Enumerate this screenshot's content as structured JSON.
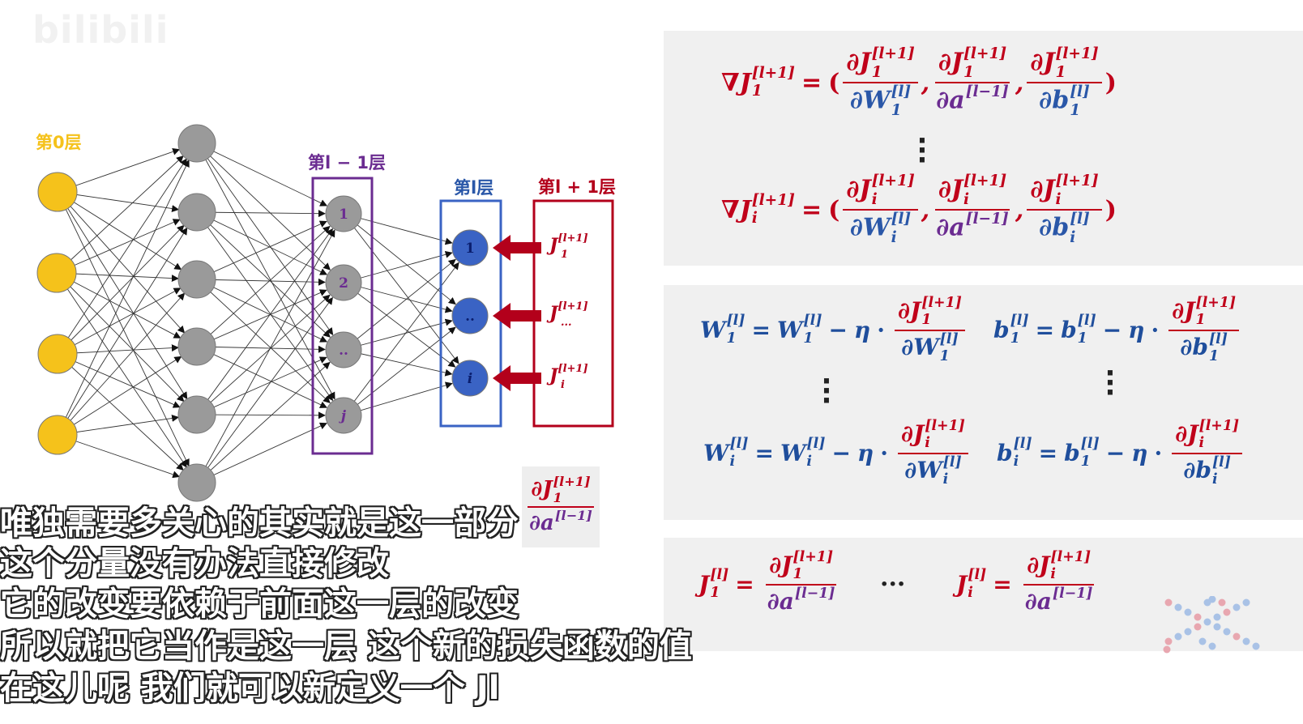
{
  "watermark": "bilibili",
  "diagram": {
    "layer0_label": "第0层",
    "layer_lm1_label": "第l − 1层",
    "layer_l_label": "第l层",
    "layer_lp1_label": "第l + 1层",
    "lm1_nodes": [
      "1",
      "2",
      "..",
      "j"
    ],
    "l_nodes": [
      "1",
      "..",
      "i"
    ],
    "lp1_J_subs": [
      "1",
      "...",
      "i"
    ]
  },
  "equations": {
    "grad_lhs_sup": "[l+1]",
    "grad_first_sub": "1",
    "grad_last_sub": "i",
    "grad_num_sup": "[l+1]",
    "W_sup": "[l]",
    "a_sup": "[l−1]",
    "b_sup": "[l]",
    "eta": "η",
    "dots": "···"
  },
  "subtitles": [
    "唯独需要多关心的其实就是这一部分",
    "这个分量没有办法直接修改",
    "它的改变要依赖于前面这一层的改变",
    "所以就把它当作是这一层 这个新的损失函数的值",
    "在这儿呢 我们就可以新定义一个 Jl"
  ],
  "colors": {
    "layer0_node": "#f5c21b",
    "hidden_node": "#9a9a9a",
    "layer_l_node": "#3a63c4",
    "purple": "#6b2c91",
    "blue": "#2a57a8",
    "red": "#b3001b",
    "panel_bg": "#f0f0f0"
  }
}
